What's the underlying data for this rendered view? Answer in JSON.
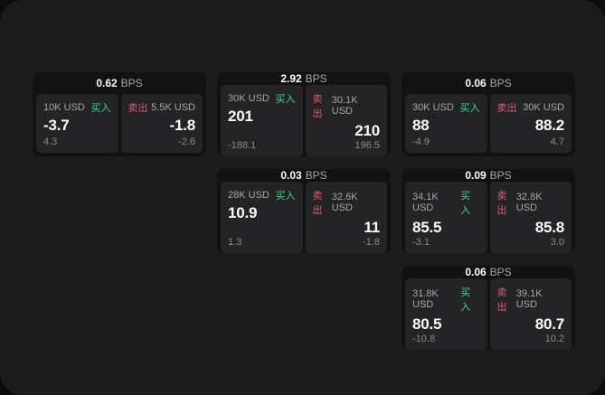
{
  "labels": {
    "bps_unit": "BPS",
    "buy": "买入",
    "sell": "卖出"
  },
  "colors": {
    "page_bg": "#0d0d0d",
    "panel_bg": "#1c1c1d",
    "card_bg": "#121212",
    "subpanel_bg": "#242426",
    "buy_green": "#3ddc84",
    "sell_red": "#e05c6e",
    "text_gray": "#a6a6a6",
    "text_dim": "#8a8a8a"
  },
  "cards": [
    {
      "bps": "0.62",
      "buy": {
        "amount": "10K USD",
        "value": "-3.7",
        "delta": "4.3"
      },
      "sell": {
        "amount": "5.5K USD",
        "value": "-1.8",
        "delta": "-2.6"
      }
    },
    {
      "bps": "2.92",
      "buy": {
        "amount": "30K USD",
        "value": "201",
        "delta": "-188.1"
      },
      "sell": {
        "amount": "30.1K USD",
        "value": "210",
        "delta": "196.5"
      }
    },
    {
      "bps": "0.06",
      "buy": {
        "amount": "30K USD",
        "value": "88",
        "delta": "-4.9"
      },
      "sell": {
        "amount": "30K USD",
        "value": "88.2",
        "delta": "4.7"
      }
    },
    {
      "bps": "0.03",
      "buy": {
        "amount": "28K USD",
        "value": "10.9",
        "delta": "1.3"
      },
      "sell": {
        "amount": "32.6K USD",
        "value": "11",
        "delta": "-1.8"
      }
    },
    {
      "bps": "0.09",
      "buy": {
        "amount": "34.1K USD",
        "value": "85.5",
        "delta": "-3.1"
      },
      "sell": {
        "amount": "32.8K USD",
        "value": "85.8",
        "delta": "3.0"
      }
    },
    {
      "bps": "0.06",
      "buy": {
        "amount": "31.8K USD",
        "value": "80.5",
        "delta": "-10.8"
      },
      "sell": {
        "amount": "39.1K USD",
        "value": "80.7",
        "delta": "10.2"
      }
    }
  ]
}
